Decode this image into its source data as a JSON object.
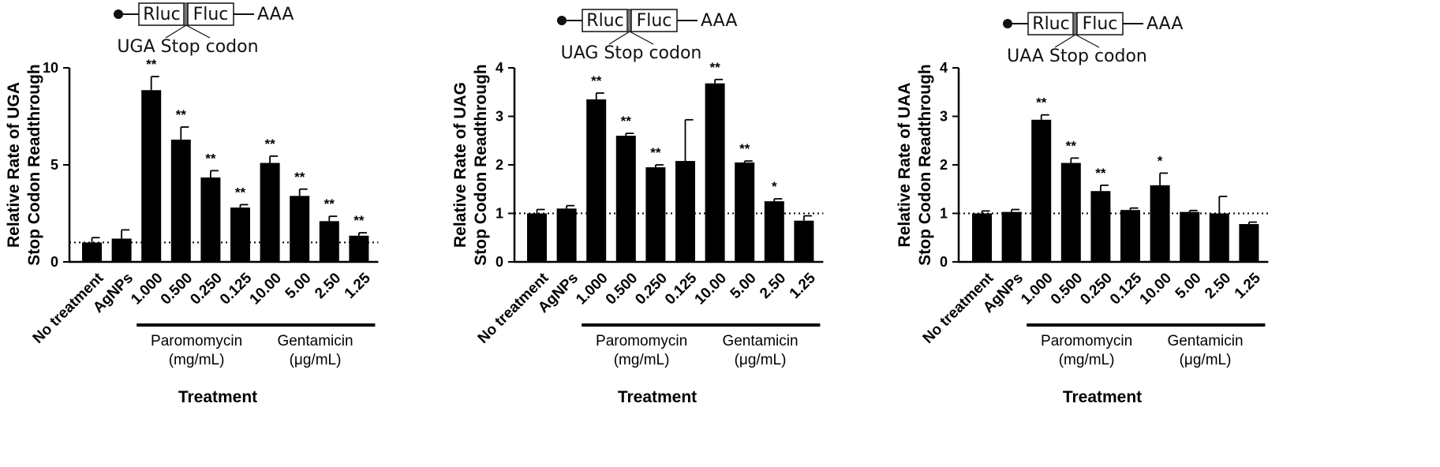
{
  "chart_data": [
    {
      "type": "bar",
      "construct": {
        "reporter_left": "Rluc",
        "reporter_right": "Fluc",
        "tail": "AAA",
        "stop_label": "UGA Stop codon"
      },
      "ylabel": [
        "Relative Rate of UGA",
        "Stop Codon Readthrough"
      ],
      "xlabel": "Treatment",
      "ylim": [
        0,
        10
      ],
      "yticks": [
        0,
        5,
        10
      ],
      "reference_line": 1,
      "categories": [
        "No treatment",
        "AgNPs",
        "1.000",
        "0.500",
        "0.250",
        "0.125",
        "10.00",
        "5.00",
        "2.50",
        "1.25"
      ],
      "values": [
        1.0,
        1.2,
        8.85,
        6.3,
        4.35,
        2.8,
        5.1,
        3.4,
        2.1,
        1.35
      ],
      "errors": [
        0.25,
        0.45,
        0.7,
        0.65,
        0.35,
        0.15,
        0.35,
        0.35,
        0.25,
        0.15
      ],
      "significance": [
        "",
        "",
        "**",
        "**",
        "**",
        "**",
        "**",
        "**",
        "**",
        "**"
      ],
      "groups": [
        {
          "label": [
            "Paromomycin",
            "(mg/mL)"
          ],
          "from": 2,
          "to": 5
        },
        {
          "label": [
            "Gentamicin",
            "(μg/mL)"
          ],
          "from": 6,
          "to": 9
        }
      ]
    },
    {
      "type": "bar",
      "construct": {
        "reporter_left": "Rluc",
        "reporter_right": "Fluc",
        "tail": "AAA",
        "stop_label": "UAG Stop codon"
      },
      "ylabel": [
        "Relative Rate of UAG",
        "Stop Codon Readthrough"
      ],
      "xlabel": "Treatment",
      "ylim": [
        0,
        4
      ],
      "yticks": [
        0,
        1,
        2,
        3,
        4
      ],
      "reference_line": 1,
      "categories": [
        "No treatment",
        "AgNPs",
        "1.000",
        "0.500",
        "0.250",
        "0.125",
        "10.00",
        "5.00",
        "2.50",
        "1.25"
      ],
      "values": [
        1.0,
        1.1,
        3.35,
        2.6,
        1.95,
        2.08,
        3.68,
        2.05,
        1.25,
        0.85
      ],
      "errors": [
        0.08,
        0.06,
        0.13,
        0.05,
        0.05,
        0.85,
        0.08,
        0.03,
        0.05,
        0.1
      ],
      "significance": [
        "",
        "",
        "**",
        "**",
        "**",
        "",
        "**",
        "**",
        "*",
        ""
      ],
      "groups": [
        {
          "label": [
            "Paromomycin",
            "(mg/mL)"
          ],
          "from": 2,
          "to": 5
        },
        {
          "label": [
            "Gentamicin",
            "(μg/mL)"
          ],
          "from": 6,
          "to": 9
        }
      ]
    },
    {
      "type": "bar",
      "construct": {
        "reporter_left": "Rluc",
        "reporter_right": "Fluc",
        "tail": "AAA",
        "stop_label": "UAA Stop codon"
      },
      "ylabel": [
        "Relative Rate of UAA",
        "Stop Codon Readthrough"
      ],
      "xlabel": "Treatment",
      "ylim": [
        0,
        4
      ],
      "yticks": [
        0,
        1,
        2,
        3,
        4
      ],
      "reference_line": 1,
      "categories": [
        "No treatment",
        "AgNPs",
        "1.000",
        "0.500",
        "0.250",
        "0.125",
        "10.00",
        "5.00",
        "2.50",
        "1.25"
      ],
      "values": [
        1.0,
        1.03,
        2.93,
        2.04,
        1.46,
        1.07,
        1.58,
        1.03,
        1.0,
        0.78
      ],
      "errors": [
        0.05,
        0.05,
        0.1,
        0.1,
        0.12,
        0.04,
        0.25,
        0.03,
        0.35,
        0.04
      ],
      "significance": [
        "",
        "",
        "**",
        "**",
        "**",
        "",
        "*",
        "",
        "",
        ""
      ],
      "groups": [
        {
          "label": [
            "Paromomycin",
            "(mg/mL)"
          ],
          "from": 2,
          "to": 5
        },
        {
          "label": [
            "Gentamicin",
            "(μg/mL)"
          ],
          "from": 6,
          "to": 9
        }
      ]
    }
  ]
}
